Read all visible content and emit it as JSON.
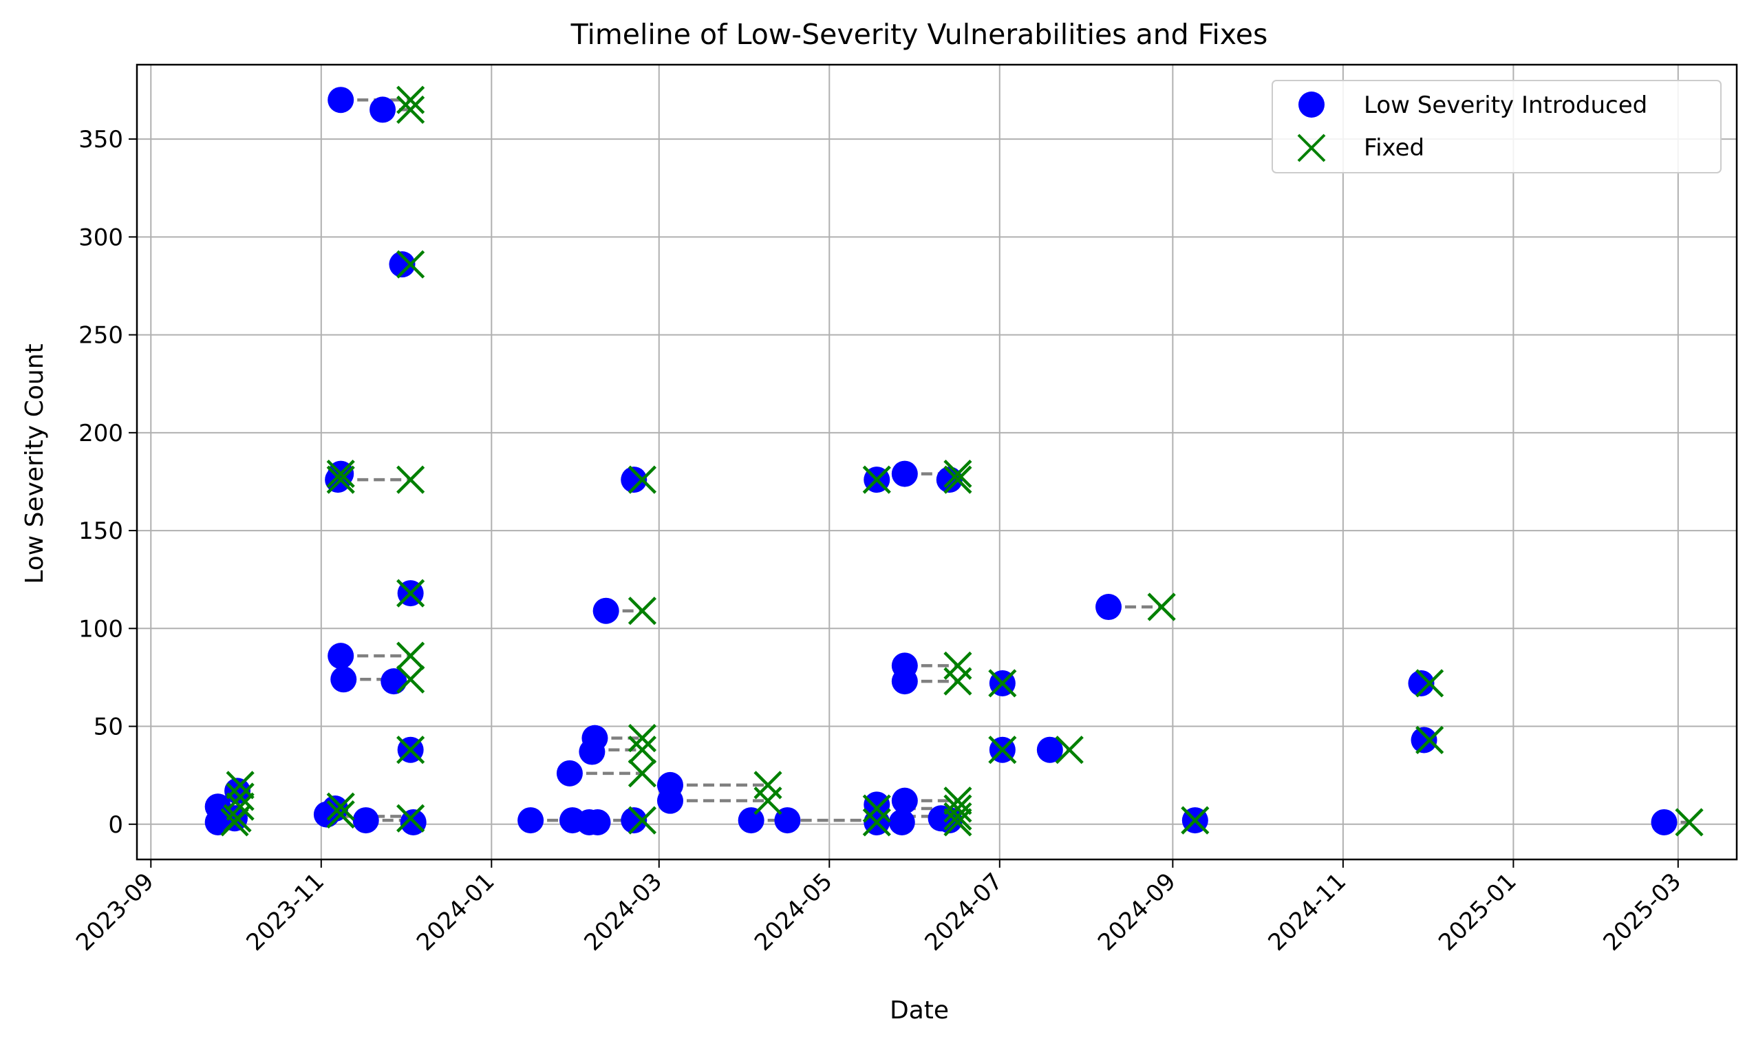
{
  "chart_data": {
    "type": "scatter",
    "title": "Timeline of Low-Severity Vulnerabilities and Fixes",
    "xlabel": "Date",
    "ylabel": "Low Severity Count",
    "xlim": [
      "2023-08-27",
      "2025-03-22"
    ],
    "ylim": [
      -18,
      388
    ],
    "grid": true,
    "legend_position": "top-right",
    "x_ticks": [
      "2023-09",
      "2023-11",
      "2024-01",
      "2024-03",
      "2024-05",
      "2024-07",
      "2024-09",
      "2024-11",
      "2025-01",
      "2025-03"
    ],
    "x_tick_dates": [
      "2023-09-01",
      "2023-11-01",
      "2024-01-01",
      "2024-03-01",
      "2024-05-01",
      "2024-07-01",
      "2024-09-01",
      "2024-11-01",
      "2025-01-01",
      "2025-03-01"
    ],
    "y_ticks": [
      0,
      50,
      100,
      150,
      200,
      250,
      300,
      350
    ],
    "y_tick_labels": [
      "0",
      "50",
      "100",
      "150",
      "200",
      "250",
      "300",
      "350"
    ],
    "colors": {
      "introduced": "#0000ff",
      "fixed": "#008000",
      "connector": "#808080",
      "grid": "#b0b0b0"
    },
    "series": [
      {
        "name": "Low Severity Introduced",
        "marker": "circle",
        "points": [
          {
            "x": "2023-11-08",
            "y": 370
          },
          {
            "x": "2023-11-23",
            "y": 365
          },
          {
            "x": "2023-11-30",
            "y": 286
          },
          {
            "x": "2023-11-07",
            "y": 176
          },
          {
            "x": "2023-11-08",
            "y": 179
          },
          {
            "x": "2023-11-08",
            "y": 86
          },
          {
            "x": "2023-11-09",
            "y": 74
          },
          {
            "x": "2023-11-27",
            "y": 73
          },
          {
            "x": "2023-12-03",
            "y": 118
          },
          {
            "x": "2023-12-03",
            "y": 38
          },
          {
            "x": "2023-12-04",
            "y": 1
          },
          {
            "x": "2023-11-03",
            "y": 5
          },
          {
            "x": "2023-11-06",
            "y": 8
          },
          {
            "x": "2023-11-17",
            "y": 2
          },
          {
            "x": "2023-09-25",
            "y": 9
          },
          {
            "x": "2023-09-25",
            "y": 1
          },
          {
            "x": "2023-10-02",
            "y": 17
          },
          {
            "x": "2023-10-01",
            "y": 3
          },
          {
            "x": "2024-01-15",
            "y": 2
          },
          {
            "x": "2024-01-29",
            "y": 26
          },
          {
            "x": "2024-01-30",
            "y": 2
          },
          {
            "x": "2024-02-06",
            "y": 37
          },
          {
            "x": "2024-02-07",
            "y": 44
          },
          {
            "x": "2024-02-05",
            "y": 1
          },
          {
            "x": "2024-02-08",
            "y": 1
          },
          {
            "x": "2024-02-11",
            "y": 109
          },
          {
            "x": "2024-02-21",
            "y": 176
          },
          {
            "x": "2024-02-21",
            "y": 2
          },
          {
            "x": "2024-03-05",
            "y": 20
          },
          {
            "x": "2024-03-05",
            "y": 12
          },
          {
            "x": "2024-04-03",
            "y": 2
          },
          {
            "x": "2024-04-16",
            "y": 2
          },
          {
            "x": "2024-05-18",
            "y": 176
          },
          {
            "x": "2024-05-18",
            "y": 10
          },
          {
            "x": "2024-05-18",
            "y": 1
          },
          {
            "x": "2024-05-28",
            "y": 179
          },
          {
            "x": "2024-05-28",
            "y": 81
          },
          {
            "x": "2024-05-28",
            "y": 73
          },
          {
            "x": "2024-05-28",
            "y": 12
          },
          {
            "x": "2024-05-27",
            "y": 1
          },
          {
            "x": "2024-06-10",
            "y": 3
          },
          {
            "x": "2024-06-13",
            "y": 176
          },
          {
            "x": "2024-06-13",
            "y": 2
          },
          {
            "x": "2024-07-02",
            "y": 72
          },
          {
            "x": "2024-07-02",
            "y": 38
          },
          {
            "x": "2024-07-19",
            "y": 38
          },
          {
            "x": "2024-08-09",
            "y": 111
          },
          {
            "x": "2024-09-09",
            "y": 2
          },
          {
            "x": "2024-11-29",
            "y": 72
          },
          {
            "x": "2024-11-30",
            "y": 43
          },
          {
            "x": "2025-02-24",
            "y": 1
          }
        ]
      },
      {
        "name": "Fixed",
        "marker": "x",
        "points": [
          {
            "x": "2023-12-03",
            "y": 370
          },
          {
            "x": "2023-12-03",
            "y": 365
          },
          {
            "x": "2023-12-03",
            "y": 286
          },
          {
            "x": "2023-12-03",
            "y": 176
          },
          {
            "x": "2023-11-08",
            "y": 179
          },
          {
            "x": "2023-11-08",
            "y": 176
          },
          {
            "x": "2023-12-03",
            "y": 86
          },
          {
            "x": "2023-12-03",
            "y": 74
          },
          {
            "x": "2023-12-03",
            "y": 118
          },
          {
            "x": "2023-12-03",
            "y": 38
          },
          {
            "x": "2023-12-03",
            "y": 3
          },
          {
            "x": "2023-11-08",
            "y": 9
          },
          {
            "x": "2023-11-08",
            "y": 5
          },
          {
            "x": "2023-10-03",
            "y": 20
          },
          {
            "x": "2023-10-03",
            "y": 14
          },
          {
            "x": "2023-10-03",
            "y": 9
          },
          {
            "x": "2023-10-02",
            "y": 3
          },
          {
            "x": "2023-10-01",
            "y": 1
          },
          {
            "x": "2024-02-24",
            "y": 176
          },
          {
            "x": "2024-02-24",
            "y": 109
          },
          {
            "x": "2024-02-24",
            "y": 44
          },
          {
            "x": "2024-02-24",
            "y": 38
          },
          {
            "x": "2024-02-24",
            "y": 26
          },
          {
            "x": "2024-02-24",
            "y": 2
          },
          {
            "x": "2024-04-09",
            "y": 20
          },
          {
            "x": "2024-04-09",
            "y": 12
          },
          {
            "x": "2024-05-18",
            "y": 176
          },
          {
            "x": "2024-05-18",
            "y": 8
          },
          {
            "x": "2024-05-18",
            "y": 1
          },
          {
            "x": "2024-06-16",
            "y": 179
          },
          {
            "x": "2024-06-16",
            "y": 176
          },
          {
            "x": "2024-06-16",
            "y": 81
          },
          {
            "x": "2024-06-16",
            "y": 73
          },
          {
            "x": "2024-06-16",
            "y": 12
          },
          {
            "x": "2024-06-16",
            "y": 8
          },
          {
            "x": "2024-06-16",
            "y": 4
          },
          {
            "x": "2024-06-16",
            "y": 1
          },
          {
            "x": "2024-07-02",
            "y": 72
          },
          {
            "x": "2024-07-02",
            "y": 38
          },
          {
            "x": "2024-07-26",
            "y": 38
          },
          {
            "x": "2024-08-28",
            "y": 111
          },
          {
            "x": "2024-09-09",
            "y": 2
          },
          {
            "x": "2024-12-02",
            "y": 72
          },
          {
            "x": "2024-12-02",
            "y": 43
          },
          {
            "x": "2025-03-05",
            "y": 1
          }
        ]
      }
    ],
    "connectors": [
      {
        "x0": "2023-11-08",
        "x1": "2023-12-03",
        "y": 370
      },
      {
        "x0": "2023-11-23",
        "x1": "2023-12-03",
        "y": 365
      },
      {
        "x0": "2023-11-30",
        "x1": "2023-12-03",
        "y": 286
      },
      {
        "x0": "2023-11-08",
        "x1": "2023-12-03",
        "y": 176
      },
      {
        "x0": "2023-11-08",
        "x1": "2023-12-03",
        "y": 86
      },
      {
        "x0": "2023-11-09",
        "x1": "2023-12-03",
        "y": 74
      },
      {
        "x0": "2023-11-08",
        "x1": "2023-12-03",
        "y": 4
      },
      {
        "x0": "2023-11-17",
        "x1": "2023-12-03",
        "y": 2
      },
      {
        "x0": "2023-09-25",
        "x1": "2023-10-03",
        "y": 9
      },
      {
        "x0": "2023-10-01",
        "x1": "2023-10-03",
        "y": 3
      },
      {
        "x0": "2024-01-15",
        "x1": "2024-02-24",
        "y": 2
      },
      {
        "x0": "2024-01-29",
        "x1": "2024-02-24",
        "y": 26
      },
      {
        "x0": "2024-02-06",
        "x1": "2024-02-24",
        "y": 38
      },
      {
        "x0": "2024-02-07",
        "x1": "2024-02-24",
        "y": 44
      },
      {
        "x0": "2024-02-11",
        "x1": "2024-02-24",
        "y": 109
      },
      {
        "x0": "2024-02-21",
        "x1": "2024-02-24",
        "y": 176
      },
      {
        "x0": "2024-03-05",
        "x1": "2024-04-09",
        "y": 20
      },
      {
        "x0": "2024-03-05",
        "x1": "2024-04-09",
        "y": 12
      },
      {
        "x0": "2024-04-03",
        "x1": "2024-05-18",
        "y": 2
      },
      {
        "x0": "2024-05-28",
        "x1": "2024-06-16",
        "y": 179
      },
      {
        "x0": "2024-05-28",
        "x1": "2024-06-16",
        "y": 81
      },
      {
        "x0": "2024-05-28",
        "x1": "2024-06-16",
        "y": 73
      },
      {
        "x0": "2024-05-28",
        "x1": "2024-06-16",
        "y": 12
      },
      {
        "x0": "2024-05-28",
        "x1": "2024-06-16",
        "y": 8
      },
      {
        "x0": "2024-05-28",
        "x1": "2024-06-16",
        "y": 4
      },
      {
        "x0": "2024-07-19",
        "x1": "2024-07-26",
        "y": 38
      },
      {
        "x0": "2024-08-09",
        "x1": "2024-08-28",
        "y": 111
      },
      {
        "x0": "2024-11-29",
        "x1": "2024-12-02",
        "y": 72
      },
      {
        "x0": "2024-11-30",
        "x1": "2024-12-02",
        "y": 43
      },
      {
        "x0": "2025-02-24",
        "x1": "2025-03-05",
        "y": 1
      }
    ]
  }
}
